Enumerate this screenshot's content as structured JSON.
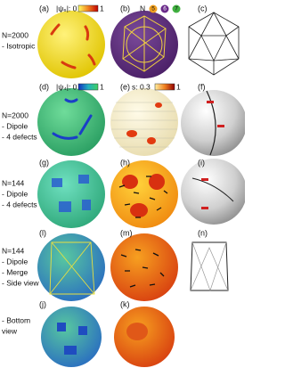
{
  "panels": [
    {
      "label": "(a)"
    },
    {
      "label": "(b)"
    },
    {
      "label": "(c)"
    },
    {
      "label": "(d)"
    },
    {
      "label": "(e)"
    },
    {
      "label": "(f)"
    },
    {
      "label": "(g)"
    },
    {
      "label": "(h)"
    },
    {
      "label": "(i)"
    },
    {
      "label": "(l)"
    },
    {
      "label": "(m)"
    },
    {
      "label": "(n)"
    },
    {
      "label": "(j)"
    },
    {
      "label": "(k)"
    }
  ],
  "rows": [
    {
      "lines": [
        "N=2000",
        "- Isotropic"
      ]
    },
    {
      "lines": [
        "N=2000",
        "- Dipole",
        "- 4 defects"
      ]
    },
    {
      "lines": [
        "N=144",
        "- Dipole",
        "- 4 defects"
      ]
    },
    {
      "lines": [
        "N=144",
        "- Dipole",
        "- Merge",
        "- Side view"
      ]
    },
    {
      "lines": [
        "- Bottom",
        "view"
      ]
    }
  ],
  "legends": {
    "psi6": {
      "label": "|ψ₆|: 0",
      "max": "1"
    },
    "coordination": {
      "label": "N",
      "values": [
        "5",
        "6",
        "7"
      ]
    },
    "psi4": {
      "label": "|ψ₄|: 0",
      "max": "1"
    },
    "order": {
      "label": "s: 0.3",
      "max": "1"
    }
  }
}
